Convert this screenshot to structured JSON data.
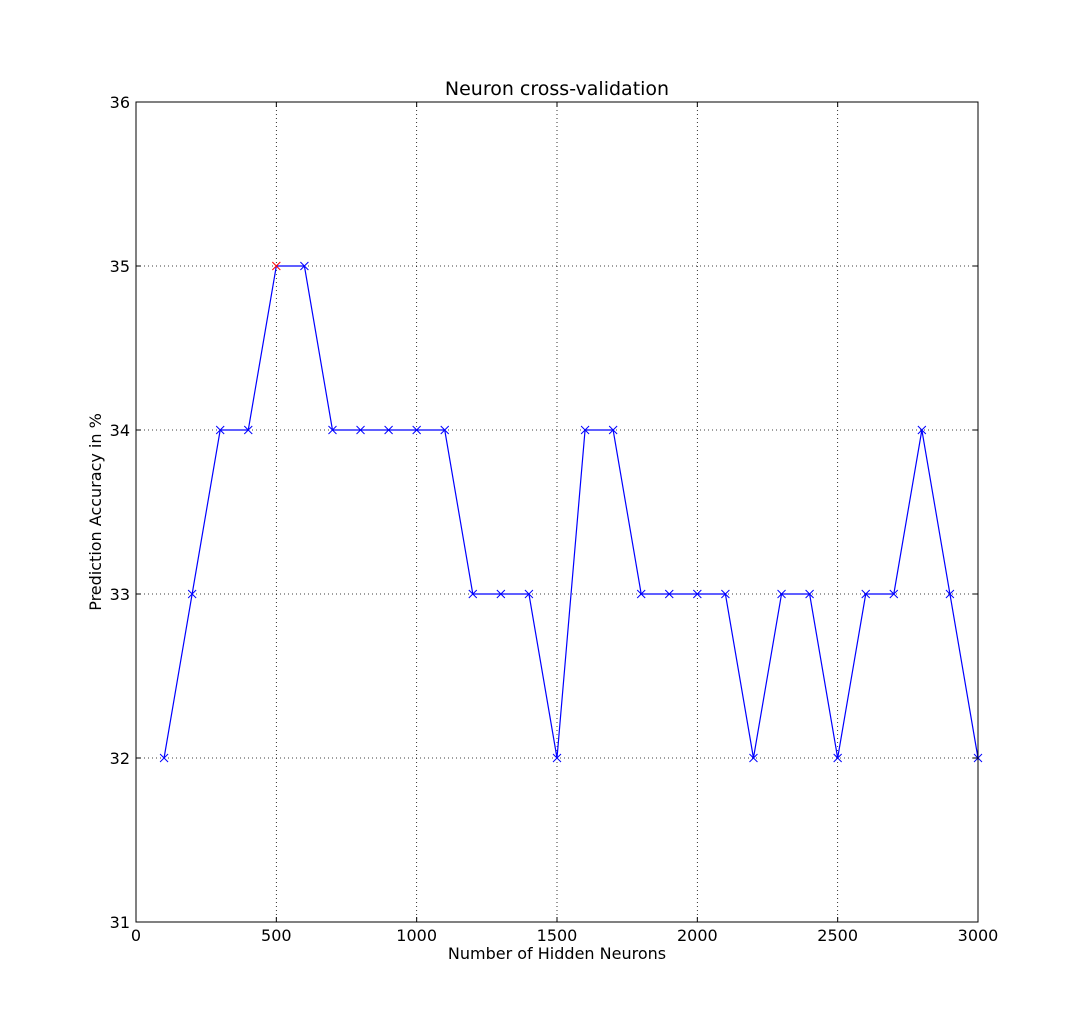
{
  "chart_data": {
    "type": "line",
    "title": "Neuron cross-validation",
    "xlabel": "Number of Hidden Neurons",
    "ylabel": "Prediction Accuracy in %",
    "xlim": [
      0,
      3000
    ],
    "ylim": [
      31,
      36
    ],
    "xticks": [
      0,
      500,
      1000,
      1500,
      2000,
      2500,
      3000
    ],
    "yticks": [
      31,
      32,
      33,
      34,
      35,
      36
    ],
    "xtick_labels": [
      "0",
      "500",
      "1000",
      "1500",
      "2000",
      "2500",
      "3000"
    ],
    "ytick_labels": [
      "31",
      "32",
      "33",
      "34",
      "35",
      "36"
    ],
    "grid": true,
    "grid_style": "dotted",
    "series": [
      {
        "color": "#0000ff",
        "marker": "x",
        "x": [
          100,
          200,
          300,
          400,
          500,
          600,
          700,
          800,
          900,
          1000,
          1100,
          1200,
          1300,
          1400,
          1500,
          1600,
          1700,
          1800,
          1900,
          2000,
          2100,
          2200,
          2300,
          2400,
          2500,
          2600,
          2700,
          2800,
          2900,
          3000
        ],
        "y": [
          32,
          33,
          34,
          34,
          35,
          35,
          34,
          34,
          34,
          34,
          34,
          33,
          33,
          33,
          32,
          34,
          34,
          33,
          33,
          33,
          33,
          32,
          33,
          33,
          32,
          33,
          33,
          34,
          33,
          32
        ]
      }
    ],
    "highlight_point": {
      "x": 500,
      "y": 35,
      "color": "#ff0000",
      "marker": "x"
    }
  }
}
